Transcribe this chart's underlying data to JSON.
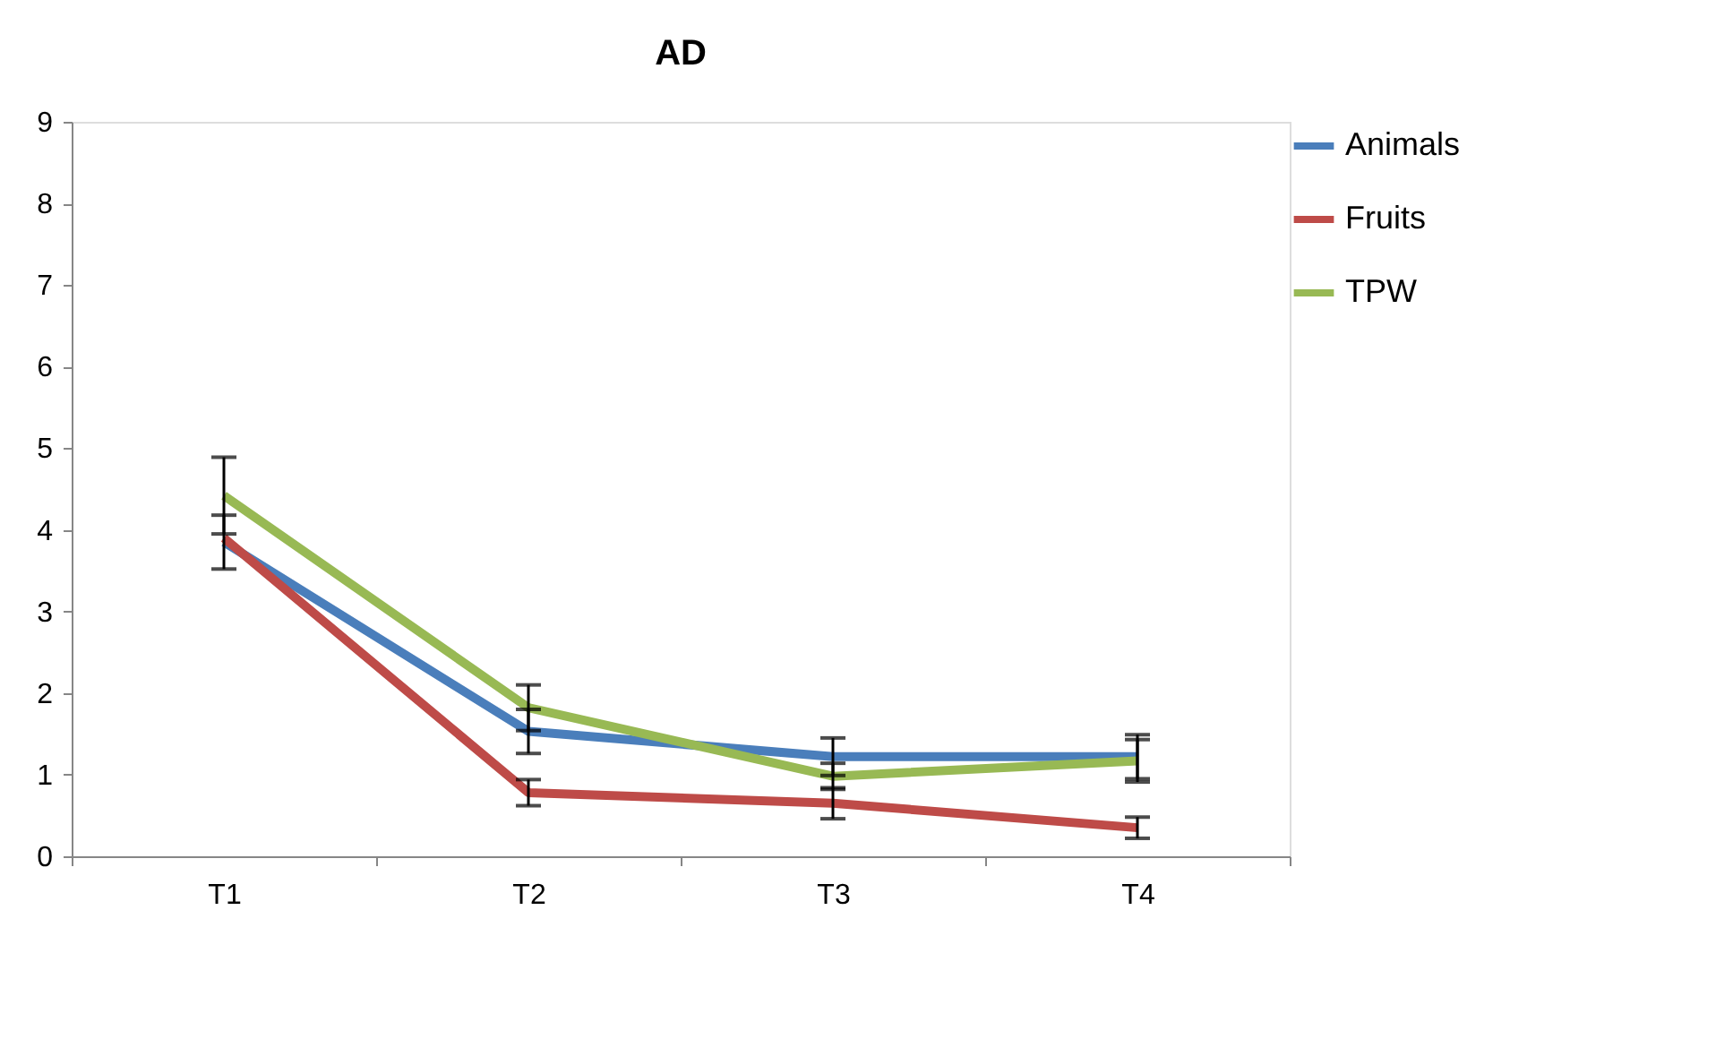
{
  "chart_data": {
    "type": "line",
    "title": "AD",
    "categories": [
      "T1",
      "T2",
      "T3",
      "T4"
    ],
    "series": [
      {
        "name": "Animals",
        "color": "#4a7ebb",
        "values": [
          3.85,
          1.53,
          1.22,
          1.22
        ],
        "errors": [
          0.33,
          0.27,
          0.23,
          0.27
        ]
      },
      {
        "name": "Fruits",
        "color": "#be4b48",
        "values": [
          3.9,
          0.78,
          0.65,
          0.35
        ],
        "errors": [
          null,
          0.16,
          0.19,
          0.13
        ]
      },
      {
        "name": "TPW",
        "color": "#98b954",
        "values": [
          4.42,
          1.82,
          0.98,
          1.17
        ],
        "errors": [
          0.47,
          0.28,
          0.16,
          0.26
        ]
      }
    ],
    "ylim": [
      0,
      9
    ],
    "yticks": [
      0,
      1,
      2,
      3,
      4,
      5,
      6,
      7,
      8,
      9
    ],
    "grid": false,
    "legend": "right",
    "marker": "none",
    "line_style": "solid"
  }
}
